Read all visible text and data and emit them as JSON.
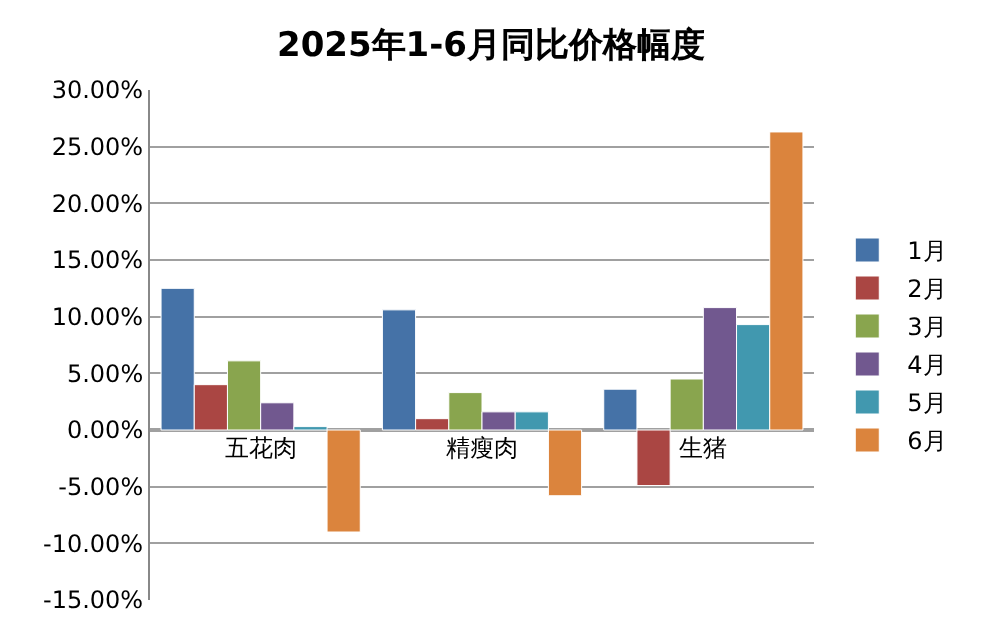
{
  "chart_data": {
    "type": "bar",
    "title": "2025年1-6月同比价格幅度",
    "categories": [
      "五花肉",
      "精瘦肉",
      "生猪"
    ],
    "series": [
      {
        "name": "1月",
        "color": "#4572a7",
        "values": [
          12.5,
          10.6,
          3.6
        ]
      },
      {
        "name": "2月",
        "color": "#aa4643",
        "values": [
          4.0,
          1.0,
          -4.9
        ]
      },
      {
        "name": "3月",
        "color": "#89a54e",
        "values": [
          6.1,
          3.3,
          4.5
        ]
      },
      {
        "name": "4月",
        "color": "#71588f",
        "values": [
          2.4,
          1.6,
          10.8
        ]
      },
      {
        "name": "5月",
        "color": "#4198af",
        "values": [
          0.3,
          1.6,
          9.3
        ]
      },
      {
        "name": "6月",
        "color": "#db843d",
        "values": [
          -9.0,
          -5.8,
          26.3
        ]
      }
    ],
    "ylim": [
      -15,
      30
    ],
    "yticks": [
      {
        "value": -15,
        "label": "-15.00%"
      },
      {
        "value": -10,
        "label": "-10.00%"
      },
      {
        "value": -5,
        "label": "-5.00%"
      },
      {
        "value": 0,
        "label": "0.00%"
      },
      {
        "value": 5,
        "label": "5.00%"
      },
      {
        "value": 10,
        "label": "10.00%"
      },
      {
        "value": 15,
        "label": "15.00%"
      },
      {
        "value": 20,
        "label": "20.00%"
      },
      {
        "value": 25,
        "label": "25.00%"
      },
      {
        "value": 30,
        "label": "30.00%"
      }
    ],
    "grid": "y",
    "legend": "right"
  }
}
